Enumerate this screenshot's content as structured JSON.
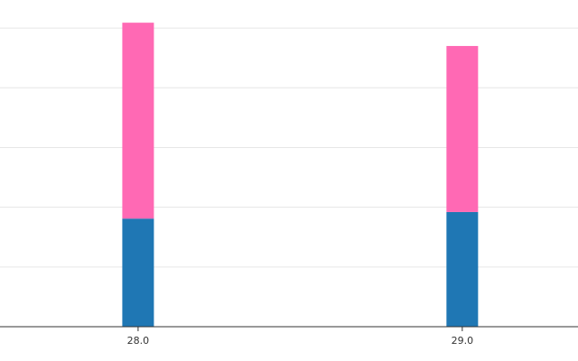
{
  "chart_data": {
    "type": "stacked-bar",
    "x": [
      28,
      29
    ],
    "series": [
      {
        "color": "#1f77b4",
        "values": [
          1.81,
          1.92
        ]
      },
      {
        "color": "#ff69b4",
        "values": [
          3.28,
          2.78
        ]
      }
    ],
    "xlim": [
      27.574,
      29.357
    ],
    "xticks": [
      {
        "value": 28,
        "label": "28.0"
      },
      {
        "value": 29,
        "label": "29.0"
      }
    ],
    "ylim": [
      0,
      5.47
    ],
    "ygrid": [
      1,
      2,
      3,
      4,
      5
    ],
    "grid": true
  }
}
